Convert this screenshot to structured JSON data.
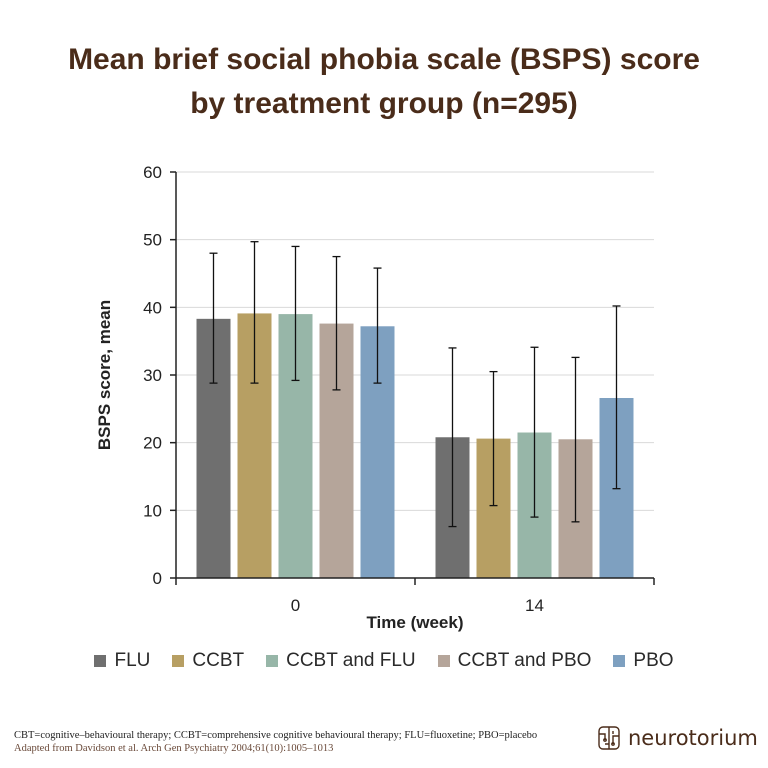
{
  "title_line1": "Mean brief social phobia scale (BSPS) score",
  "title_line2": "by treatment group (n=295)",
  "chart_data": {
    "type": "bar",
    "categories": [
      "0",
      "14"
    ],
    "xlabel": "Time (week)",
    "ylabel": "BSPS score, mean",
    "ylim": [
      0,
      60
    ],
    "yticks": [
      0,
      10,
      20,
      30,
      40,
      50,
      60
    ],
    "grid": true,
    "legend_position": "bottom",
    "series": [
      {
        "name": "FLU",
        "color": "#6f6f6f",
        "values": [
          38.3,
          20.8
        ],
        "error_low": [
          28.8,
          7.6
        ],
        "error_high": [
          48.0,
          34.0
        ]
      },
      {
        "name": "CCBT",
        "color": "#b79f63",
        "values": [
          39.1,
          20.6
        ],
        "error_low": [
          28.8,
          10.7
        ],
        "error_high": [
          49.7,
          30.5
        ]
      },
      {
        "name": "CCBT and FLU",
        "color": "#97b6a8",
        "values": [
          39.0,
          21.5
        ],
        "error_low": [
          29.2,
          9.0
        ],
        "error_high": [
          49.0,
          34.1
        ]
      },
      {
        "name": "CCBT and PBO",
        "color": "#b5a59a",
        "values": [
          37.6,
          20.5
        ],
        "error_low": [
          27.8,
          8.3
        ],
        "error_high": [
          47.5,
          32.6
        ]
      },
      {
        "name": "PBO",
        "color": "#7ea0c0",
        "values": [
          37.2,
          26.6
        ],
        "error_low": [
          28.8,
          13.2
        ],
        "error_high": [
          45.8,
          40.2
        ]
      }
    ]
  },
  "footnote_line1": "CBT=cognitive–behavioural therapy; CCBT=comprehensive cognitive behavioural therapy; FLU=fluoxetine; PBO=placebo",
  "footnote_line2": "Adapted from Davidson et al. Arch Gen Psychiatry 2004;61(10):1005–1013",
  "logo_text": "neurotorium"
}
